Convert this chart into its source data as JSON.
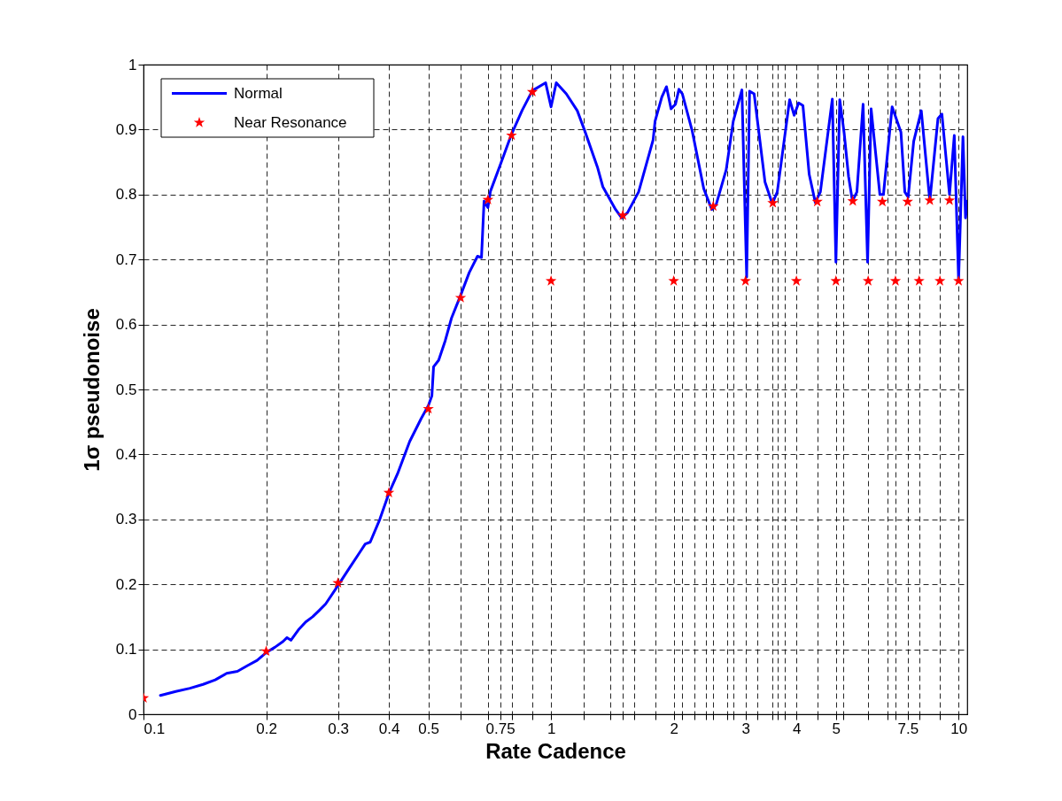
{
  "chart_data": {
    "type": "line",
    "xlabel": "Rate Cadence",
    "ylabel": "1σ pseudonoise",
    "log": "x",
    "grid": true,
    "legend": "top left",
    "xlim": [
      0.1,
      10.5
    ],
    "ylim": [
      0,
      1
    ],
    "xticks": [
      0.1,
      0.2,
      0.3,
      0.4,
      0.5,
      {
        "value": 0.6,
        "label": null
      },
      {
        "value": 0.7,
        "label": null
      },
      0.75,
      {
        "value": 0.8,
        "label": null
      },
      {
        "value": 0.9,
        "label": null
      },
      1,
      {
        "value": 1.2,
        "label": null
      },
      {
        "value": 1.4,
        "label": null
      },
      {
        "value": 1.5,
        "label": null
      },
      {
        "value": 1.6,
        "label": null
      },
      {
        "value": 1.8,
        "label": null
      },
      2,
      {
        "value": 2.1,
        "label": null
      },
      {
        "value": 2.25,
        "label": null
      },
      {
        "value": 2.4,
        "label": null
      },
      {
        "value": 2.5,
        "label": null
      },
      {
        "value": 2.7,
        "label": null
      },
      {
        "value": 2.8,
        "label": null
      },
      3,
      {
        "value": 3.2,
        "label": null
      },
      {
        "value": 3.5,
        "label": null
      },
      {
        "value": 3.6,
        "label": null
      },
      {
        "value": 3.75,
        "label": null
      },
      4,
      {
        "value": 4.5,
        "label": null
      },
      5,
      {
        "value": 5.2,
        "label": null
      },
      {
        "value": 6,
        "label": null
      },
      {
        "value": 6.7,
        "label": null
      },
      {
        "value": 7,
        "label": null
      },
      7.5,
      {
        "value": 8,
        "label": null
      },
      {
        "value": 9,
        "label": null
      },
      10
    ],
    "yticks": [
      0,
      0.1,
      0.2,
      0.3,
      0.4,
      0.5,
      0.6,
      0.7,
      0.8,
      0.9,
      1
    ],
    "series": [
      {
        "name": "Normal",
        "type": "line",
        "color": "#0000ff",
        "marker": "none",
        "line_style": "solid",
        "x": [
          0.11,
          0.12,
          0.13,
          0.14,
          0.15,
          0.16,
          0.17,
          0.18,
          0.19,
          0.2,
          0.21,
          0.22,
          0.225,
          0.23,
          0.24,
          0.25,
          0.26,
          0.27,
          0.28,
          0.3,
          0.32,
          0.34,
          0.35,
          0.36,
          0.38,
          0.4,
          0.42,
          0.45,
          0.48,
          0.5,
          0.51,
          0.515,
          0.53,
          0.55,
          0.57,
          0.6,
          0.63,
          0.66,
          0.675,
          0.685,
          0.7,
          0.71,
          0.75,
          0.8,
          0.85,
          0.9,
          0.97,
          1.0,
          1.03,
          1.09,
          1.16,
          1.21,
          1.3,
          1.34,
          1.44,
          1.49,
          1.54,
          1.64,
          1.78,
          1.8,
          1.87,
          1.92,
          1.97,
          2.02,
          2.06,
          2.1,
          2.22,
          2.37,
          2.48,
          2.54,
          2.69,
          2.8,
          2.94,
          3.02,
          3.07,
          3.15,
          3.35,
          3.49,
          3.59,
          3.85,
          3.95,
          4.05,
          4.15,
          4.3,
          4.45,
          4.58,
          4.9,
          5.0,
          5.11,
          5.24,
          5.37,
          5.49,
          5.63,
          5.83,
          5.98,
          6.1,
          6.41,
          6.54,
          6.87,
          7.22,
          7.38,
          7.52,
          7.76,
          8.1,
          8.5,
          8.9,
          9.1,
          9.5,
          9.76,
          10.0,
          10.25,
          10.4,
          10.5
        ],
        "values": [
          0.029,
          0.035,
          0.04,
          0.046,
          0.053,
          0.063,
          0.066,
          0.075,
          0.083,
          0.095,
          0.103,
          0.112,
          0.118,
          0.114,
          0.13,
          0.142,
          0.15,
          0.16,
          0.17,
          0.198,
          0.225,
          0.25,
          0.262,
          0.265,
          0.3,
          0.34,
          0.37,
          0.42,
          0.455,
          0.475,
          0.49,
          0.535,
          0.545,
          0.575,
          0.61,
          0.645,
          0.68,
          0.705,
          0.703,
          0.79,
          0.78,
          0.805,
          0.845,
          0.893,
          0.93,
          0.96,
          0.972,
          0.935,
          0.972,
          0.955,
          0.929,
          0.898,
          0.842,
          0.812,
          0.777,
          0.764,
          0.772,
          0.804,
          0.884,
          0.913,
          0.95,
          0.966,
          0.932,
          0.939,
          0.962,
          0.955,
          0.898,
          0.809,
          0.777,
          0.784,
          0.838,
          0.913,
          0.961,
          0.673,
          0.959,
          0.955,
          0.819,
          0.786,
          0.804,
          0.946,
          0.922,
          0.941,
          0.937,
          0.831,
          0.788,
          0.804,
          0.947,
          0.696,
          0.946,
          0.894,
          0.828,
          0.79,
          0.804,
          0.939,
          0.696,
          0.932,
          0.8,
          0.8,
          0.935,
          0.896,
          0.804,
          0.796,
          0.882,
          0.929,
          0.79,
          0.917,
          0.924,
          0.8,
          0.891,
          0.668,
          0.889,
          0.764,
          0.79
        ]
      },
      {
        "name": "Near Resonance",
        "type": "scatter",
        "color": "#ff0000",
        "marker": "star",
        "x": [
          0.1,
          0.2,
          0.3,
          0.4,
          0.5,
          0.6,
          0.7,
          0.8,
          0.9,
          1,
          1.5,
          2,
          2.5,
          3,
          3.5,
          4,
          4.5,
          5,
          5.5,
          6,
          6.5,
          7,
          7.5,
          8,
          8.5,
          9,
          9.5,
          10
        ],
        "values": [
          0.025,
          0.097,
          0.202,
          0.341,
          0.47,
          0.641,
          0.792,
          0.891,
          0.958,
          0.667,
          0.768,
          0.667,
          0.782,
          0.667,
          0.787,
          0.667,
          0.789,
          0.667,
          0.79,
          0.667,
          0.789,
          0.667,
          0.789,
          0.667,
          0.791,
          0.667,
          0.791,
          0.667
        ]
      }
    ]
  }
}
